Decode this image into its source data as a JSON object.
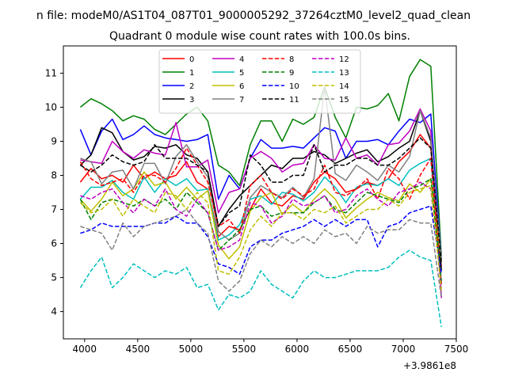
{
  "header_title": "n file: modeM0/AS1T04_087T01_9000005292_37264cztM0_level2_quad_clean",
  "chart_data": {
    "type": "line",
    "title": "Quadrant 0 module wise count rates with 100.0s bins.",
    "xlabel": "",
    "ylabel": "",
    "x_offset_label": "+3.9861e8",
    "xlim": [
      3800,
      7500
    ],
    "ylim": [
      3.2,
      11.8
    ],
    "xticks": [
      4000,
      4500,
      5000,
      5500,
      6000,
      6500,
      7000,
      7500
    ],
    "yticks": [
      4,
      5,
      6,
      7,
      8,
      9,
      10,
      11
    ],
    "grid": false,
    "legend": {
      "placement": "top-center",
      "columns": 4
    },
    "x": [
      3960,
      4060,
      4160,
      4260,
      4360,
      4460,
      4560,
      4660,
      4760,
      4860,
      4960,
      5060,
      5160,
      5260,
      5360,
      5460,
      5560,
      5660,
      5760,
      5860,
      5960,
      6060,
      6160,
      6260,
      6360,
      6460,
      6560,
      6660,
      6760,
      6860,
      6960,
      7060,
      7160,
      7260,
      7360
    ],
    "series": [
      {
        "name": "0",
        "color": "#ff0000",
        "dash": false,
        "values": [
          7.8,
          8.2,
          7.9,
          8.0,
          7.8,
          8.3,
          7.9,
          8.1,
          7.9,
          8.0,
          8.4,
          7.8,
          7.6,
          6.2,
          6.5,
          6.4,
          7.0,
          7.6,
          7.2,
          7.1,
          7.4,
          7.3,
          7.8,
          8.1,
          7.9,
          7.5,
          7.6,
          7.8,
          7.7,
          7.9,
          8.4,
          8.7,
          9.2,
          8.8,
          5.3
        ]
      },
      {
        "name": "1",
        "color": "#008000",
        "dash": false,
        "values": [
          10.0,
          10.25,
          10.1,
          9.9,
          9.6,
          9.75,
          9.65,
          9.35,
          9.2,
          9.5,
          9.8,
          10.0,
          9.6,
          8.3,
          8.1,
          7.7,
          8.9,
          9.6,
          9.6,
          9.0,
          9.65,
          9.5,
          9.7,
          10.6,
          9.7,
          9.1,
          10.0,
          9.95,
          10.05,
          10.4,
          9.6,
          10.9,
          11.4,
          11.2,
          5.6
        ]
      },
      {
        "name": "2",
        "color": "#0000ff",
        "dash": false,
        "values": [
          9.35,
          8.6,
          9.3,
          9.65,
          9.05,
          9.2,
          9.45,
          9.2,
          9.1,
          9.05,
          9.0,
          9.05,
          9.2,
          7.3,
          8.0,
          7.6,
          8.5,
          9.05,
          8.8,
          8.8,
          8.85,
          8.8,
          9.1,
          9.4,
          9.3,
          8.5,
          9.0,
          9.0,
          9.05,
          8.9,
          9.3,
          9.65,
          9.55,
          9.8,
          5.5
        ]
      },
      {
        "name": "3",
        "color": "#000000",
        "dash": false,
        "values": [
          8.3,
          8.6,
          9.4,
          9.25,
          8.7,
          8.45,
          8.55,
          8.85,
          8.8,
          8.9,
          8.6,
          8.5,
          8.1,
          6.5,
          7.0,
          7.4,
          7.7,
          8.0,
          8.3,
          8.2,
          8.5,
          8.5,
          8.7,
          8.6,
          8.35,
          8.5,
          8.65,
          8.75,
          8.4,
          8.55,
          8.8,
          9.0,
          9.9,
          9.0,
          5.2
        ]
      },
      {
        "name": "4",
        "color": "#bf00bf",
        "dash": false,
        "values": [
          8.45,
          8.4,
          8.35,
          9.0,
          8.7,
          8.5,
          8.75,
          8.65,
          8.6,
          9.55,
          8.25,
          8.25,
          8.45,
          6.9,
          7.5,
          7.6,
          8.5,
          8.7,
          8.5,
          8.1,
          8.3,
          8.35,
          8.9,
          8.5,
          8.45,
          9.1,
          8.5,
          8.6,
          8.3,
          8.9,
          8.95,
          9.3,
          9.95,
          9.3,
          4.4
        ]
      },
      {
        "name": "5",
        "color": "#00bfbf",
        "dash": false,
        "values": [
          7.3,
          7.65,
          7.65,
          7.85,
          7.5,
          7.3,
          7.95,
          7.5,
          7.9,
          7.7,
          7.9,
          7.55,
          7.6,
          6.1,
          6.25,
          6.55,
          7.3,
          7.4,
          7.15,
          7.5,
          7.45,
          7.25,
          7.5,
          7.95,
          7.65,
          7.2,
          7.65,
          7.75,
          7.7,
          7.9,
          7.7,
          8.15,
          8.35,
          8.5,
          4.8
        ]
      },
      {
        "name": "6",
        "color": "#bfbf00",
        "dash": false,
        "values": [
          7.3,
          6.95,
          7.3,
          7.8,
          7.4,
          7.6,
          8.1,
          7.7,
          7.8,
          7.3,
          7.65,
          7.3,
          7.55,
          5.95,
          5.55,
          5.9,
          6.95,
          7.35,
          7.5,
          6.85,
          7.15,
          6.9,
          7.3,
          7.6,
          7.3,
          6.75,
          7.05,
          7.3,
          7.5,
          7.35,
          7.25,
          7.75,
          7.5,
          7.9,
          5.5
        ]
      },
      {
        "name": "7",
        "color": "#808080",
        "dash": false,
        "values": [
          8.5,
          8.4,
          7.75,
          8.1,
          8.15,
          7.6,
          8.35,
          8.35,
          7.75,
          8.55,
          8.9,
          8.4,
          7.95,
          6.35,
          6.1,
          6.3,
          7.35,
          7.7,
          7.5,
          7.35,
          7.65,
          7.35,
          7.9,
          10.6,
          8.05,
          7.85,
          8.3,
          8.1,
          7.85,
          8.3,
          8.1,
          8.55,
          9.9,
          9.1,
          5.5
        ]
      },
      {
        "name": "8",
        "color": "#ff0000",
        "dash": true,
        "values": [
          8.4,
          7.9,
          7.7,
          7.8,
          7.9,
          7.5,
          8.0,
          8.0,
          7.8,
          8.2,
          8.8,
          8.3,
          7.8,
          6.5,
          6.7,
          6.3,
          7.7,
          8.0,
          7.5,
          7.3,
          7.6,
          7.4,
          7.6,
          8.3,
          7.5,
          7.4,
          7.6,
          7.9,
          7.3,
          8.2,
          7.9,
          7.3,
          8.0,
          8.5,
          4.8
        ]
      },
      {
        "name": "9",
        "color": "#008000",
        "dash": true,
        "values": [
          7.3,
          6.7,
          7.2,
          7.3,
          7.2,
          7.1,
          7.3,
          7.1,
          7.3,
          7.0,
          7.5,
          7.2,
          6.9,
          5.8,
          6.1,
          6.4,
          7.0,
          7.1,
          6.8,
          6.9,
          6.9,
          6.9,
          7.2,
          7.4,
          7.0,
          6.9,
          7.2,
          7.5,
          7.4,
          7.3,
          7.2,
          7.6,
          7.7,
          7.9,
          4.9
        ]
      },
      {
        "name": "10",
        "color": "#0000ff",
        "dash": true,
        "values": [
          6.3,
          6.4,
          6.6,
          6.5,
          6.5,
          6.5,
          6.5,
          6.6,
          6.6,
          6.8,
          6.6,
          6.6,
          6.2,
          5.4,
          5.3,
          5.1,
          5.9,
          6.1,
          6.1,
          6.3,
          6.4,
          6.5,
          6.7,
          6.5,
          6.7,
          6.5,
          6.7,
          6.7,
          5.9,
          6.5,
          6.6,
          6.9,
          7.0,
          7.1,
          5.1
        ]
      },
      {
        "name": "11",
        "color": "#000000",
        "dash": true,
        "values": [
          8.3,
          8.1,
          8.3,
          8.6,
          8.4,
          8.3,
          8.4,
          8.9,
          8.5,
          8.5,
          8.5,
          8.3,
          8.1,
          6.5,
          6.9,
          7.1,
          8.6,
          8.3,
          7.8,
          7.8,
          8.0,
          8.0,
          8.9,
          8.1,
          8.3,
          8.3,
          8.5,
          8.5,
          8.3,
          8.3,
          8.5,
          8.8,
          9.1,
          8.8,
          5.4
        ]
      },
      {
        "name": "12",
        "color": "#bf00bf",
        "dash": true,
        "values": [
          7.4,
          7.3,
          7.5,
          7.6,
          7.2,
          6.9,
          7.3,
          7.1,
          7.6,
          7.0,
          6.8,
          7.3,
          6.9,
          5.8,
          5.9,
          6.1,
          7.2,
          7.1,
          6.6,
          6.8,
          7.3,
          7.1,
          7.2,
          7.4,
          6.9,
          7.0,
          7.4,
          7.6,
          7.3,
          7.1,
          7.5,
          7.6,
          7.8,
          7.6,
          4.7
        ]
      },
      {
        "name": "13",
        "color": "#00bfbf",
        "dash": true,
        "values": [
          4.7,
          5.2,
          5.6,
          4.7,
          5.0,
          5.4,
          5.2,
          5.0,
          5.2,
          5.1,
          5.3,
          4.7,
          4.8,
          4.05,
          4.5,
          4.4,
          4.6,
          5.2,
          4.8,
          4.6,
          4.4,
          4.9,
          5.2,
          5.0,
          5.0,
          5.1,
          5.2,
          5.2,
          5.2,
          5.3,
          5.6,
          5.8,
          5.6,
          5.5,
          3.55
        ]
      },
      {
        "name": "14",
        "color": "#bfbf00",
        "dash": true,
        "values": [
          7.2,
          6.9,
          7.0,
          7.3,
          6.8,
          7.3,
          7.1,
          6.9,
          7.5,
          7.4,
          7.0,
          7.5,
          7.2,
          5.2,
          5.1,
          5.6,
          6.4,
          6.8,
          6.5,
          6.9,
          6.9,
          6.7,
          7.0,
          6.9,
          7.1,
          6.6,
          6.8,
          7.0,
          7.0,
          7.3,
          7.1,
          7.5,
          7.6,
          7.7,
          4.6
        ]
      },
      {
        "name": "15",
        "color": "#808080",
        "dash": true,
        "values": [
          6.5,
          6.4,
          6.3,
          5.8,
          6.6,
          6.2,
          6.5,
          6.6,
          6.7,
          6.8,
          7.0,
          6.6,
          6.3,
          4.9,
          4.6,
          4.9,
          5.7,
          6.1,
          5.9,
          6.2,
          6.0,
          6.2,
          6.0,
          6.4,
          6.2,
          6.3,
          6.0,
          6.5,
          6.3,
          6.4,
          6.4,
          6.7,
          6.6,
          6.6,
          4.4
        ]
      }
    ]
  }
}
